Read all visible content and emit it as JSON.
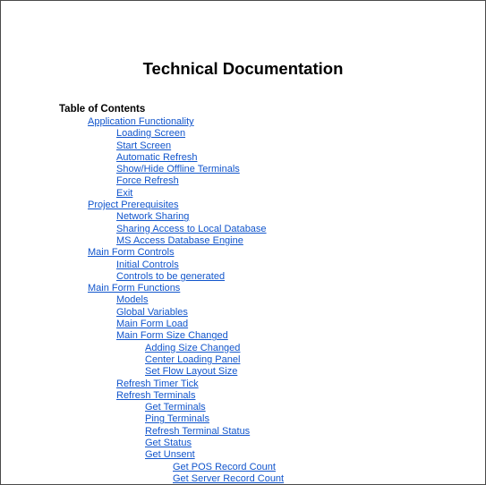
{
  "document": {
    "title": "Technical Documentation",
    "toc_heading": "Table of Contents",
    "toc": [
      {
        "label": "Application Functionality",
        "level": 1
      },
      {
        "label": "Loading Screen",
        "level": 2
      },
      {
        "label": "Start Screen",
        "level": 2
      },
      {
        "label": "Automatic Refresh",
        "level": 2
      },
      {
        "label": "Show/Hide Offline Terminals",
        "level": 2
      },
      {
        "label": "Force Refresh",
        "level": 2
      },
      {
        "label": "Exit",
        "level": 2
      },
      {
        "label": "Project Prerequisites",
        "level": 1
      },
      {
        "label": "Network Sharing",
        "level": 2
      },
      {
        "label": "Sharing Access to Local Database",
        "level": 2
      },
      {
        "label": "MS Access Database Engine",
        "level": 2
      },
      {
        "label": "Main Form Controls",
        "level": 1
      },
      {
        "label": "Initial Controls",
        "level": 2
      },
      {
        "label": "Controls to be generated",
        "level": 2
      },
      {
        "label": "Main Form Functions",
        "level": 1
      },
      {
        "label": "Models",
        "level": 2
      },
      {
        "label": "Global Variables",
        "level": 2
      },
      {
        "label": "Main Form Load",
        "level": 2
      },
      {
        "label": "Main Form Size Changed",
        "level": 2
      },
      {
        "label": "Adding Size Changed",
        "level": 3
      },
      {
        "label": "Center Loading Panel",
        "level": 3
      },
      {
        "label": "Set Flow Layout Size",
        "level": 3
      },
      {
        "label": "Refresh Timer Tick",
        "level": 2
      },
      {
        "label": "Refresh Terminals",
        "level": 2
      },
      {
        "label": "Get Terminals",
        "level": 3
      },
      {
        "label": "Ping Terminals",
        "level": 3
      },
      {
        "label": "Refresh Terminal Status",
        "level": 3
      },
      {
        "label": "Get Status",
        "level": 3
      },
      {
        "label": "Get Unsent",
        "level": 3
      },
      {
        "label": "Get POS Record Count",
        "level": 4
      },
      {
        "label": "Get Server Record Count",
        "level": 4
      }
    ]
  },
  "colors": {
    "link": "#1155cc",
    "text": "#000000",
    "border": "#4a4a4a"
  }
}
